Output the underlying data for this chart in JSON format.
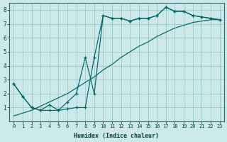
{
  "xlabel": "Humidex (Indice chaleur)",
  "bg_color": "#cce8e8",
  "line_color": "#006666",
  "grid_color": "#9dc8c8",
  "xlim": [
    -0.5,
    23.5
  ],
  "ylim": [
    0,
    8.5
  ],
  "xticks": [
    0,
    1,
    2,
    3,
    4,
    5,
    6,
    7,
    8,
    9,
    10,
    11,
    12,
    13,
    14,
    15,
    16,
    17,
    18,
    19,
    20,
    21,
    22,
    23
  ],
  "yticks": [
    1,
    2,
    3,
    4,
    5,
    6,
    7,
    8
  ],
  "lineA_x": [
    0,
    1,
    2,
    3,
    4,
    5,
    6,
    7,
    8,
    9,
    10,
    11,
    12,
    13,
    14,
    15,
    16,
    17,
    18,
    19,
    20,
    21,
    22,
    23
  ],
  "lineA_y": [
    2.7,
    1.8,
    1.0,
    0.8,
    0.8,
    0.8,
    0.9,
    1.0,
    1.0,
    4.6,
    7.6,
    7.4,
    7.4,
    7.2,
    7.4,
    7.4,
    7.6,
    8.2,
    7.9,
    7.9,
    7.6,
    7.5,
    7.4,
    7.3
  ],
  "lineB_x": [
    0,
    1,
    2,
    3,
    4,
    5,
    6,
    7,
    8,
    9,
    10,
    11,
    12,
    13,
    14,
    15,
    16,
    17,
    18,
    19,
    20,
    21,
    22,
    23
  ],
  "lineB_y": [
    2.7,
    1.8,
    1.0,
    0.8,
    1.2,
    0.8,
    1.4,
    2.0,
    4.6,
    2.0,
    7.6,
    7.4,
    7.4,
    7.2,
    7.4,
    7.4,
    7.6,
    8.2,
    7.9,
    7.9,
    7.6,
    7.5,
    7.4,
    7.3
  ],
  "lineC_x": [
    0,
    1,
    2,
    3,
    4,
    5,
    6,
    7,
    8,
    9,
    10,
    11,
    12,
    13,
    14,
    15,
    16,
    17,
    18,
    19,
    20,
    21,
    22,
    23
  ],
  "lineC_y": [
    0.4,
    0.6,
    0.8,
    1.1,
    1.4,
    1.7,
    2.0,
    2.4,
    2.8,
    3.2,
    3.7,
    4.1,
    4.6,
    5.0,
    5.4,
    5.7,
    6.1,
    6.4,
    6.7,
    6.9,
    7.1,
    7.2,
    7.3,
    7.3
  ]
}
